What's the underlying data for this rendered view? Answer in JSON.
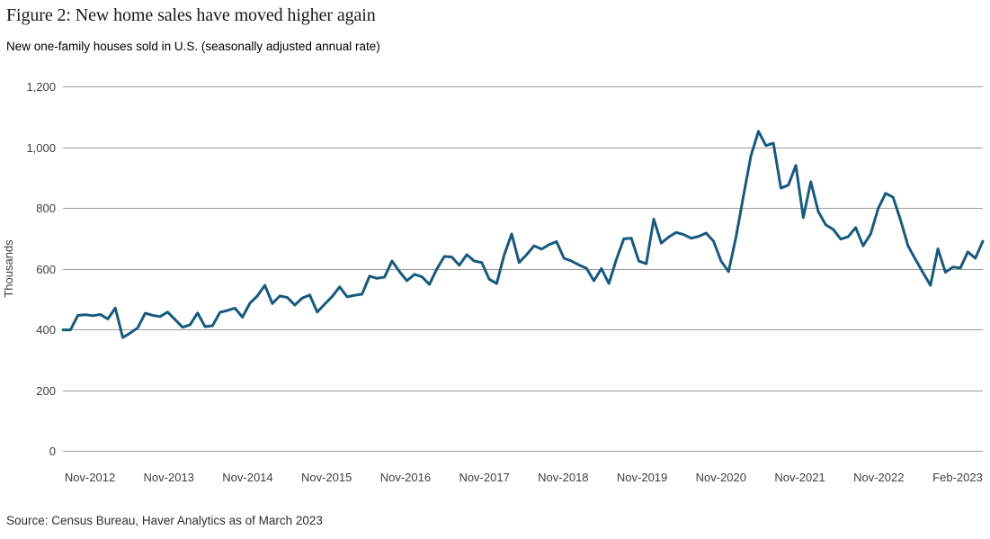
{
  "header": {
    "title": "Figure 2: New home sales have moved higher again",
    "subtitle": "New one-family houses sold in U.S. (seasonally adjusted annual rate)"
  },
  "footer": {
    "source": "Source: Census Bureau, Haver Analytics as of March 2023"
  },
  "chart_data": {
    "type": "line",
    "title": "Figure 2: New home sales have moved higher again",
    "subtitle": "New one-family houses sold in U.S. (seasonally adjusted annual rate)",
    "ylabel": "Thousands",
    "ylim": [
      0,
      1200
    ],
    "y_ticks": [
      0,
      200,
      400,
      600,
      800,
      1000,
      1200
    ],
    "x_tick_labels": [
      "Nov-2012",
      "Nov-2013",
      "Nov-2014",
      "Nov-2015",
      "Nov-2016",
      "Nov-2017",
      "Nov-2018",
      "Nov-2019",
      "Nov-2020",
      "Nov-2021",
      "Nov-2022",
      "Feb-2023"
    ],
    "grid": "horizontal",
    "legend": "none",
    "line_color": "#175A7E",
    "gridline_color": "#9B9B9B",
    "series": [
      {
        "name": "New one-family houses sold in U.S., seasonally adjusted annual rate (thousands)",
        "start": "Nov-2012",
        "frequency": "monthly",
        "values": [
          398,
          398,
          446,
          448,
          445,
          449,
          434,
          470,
          373,
          388,
          405,
          453,
          446,
          442,
          457,
          432,
          407,
          415,
          454,
          409,
          412,
          456,
          462,
          470,
          440,
          486,
          510,
          545,
          485,
          510,
          505,
          480,
          503,
          513,
          457,
          483,
          508,
          540,
          507,
          512,
          516,
          575,
          568,
          572,
          625,
          590,
          560,
          581,
          573,
          548,
          599,
          640,
          638,
          611,
          646,
          625,
          620,
          565,
          551,
          645,
          714,
          620,
          646,
          675,
          664,
          679,
          689,
          634,
          625,
          612,
          601,
          560,
          600,
          551,
          630,
          698,
          700,
          625,
          616,
          763,
          684,
          704,
          719,
          712,
          700,
          706,
          717,
          690,
          625,
          590,
          704,
          840,
          972,
          1052,
          1005,
          1013,
          865,
          875,
          940,
          768,
          886,
          788,
          744,
          729,
          697,
          705,
          735,
          675,
          714,
          797,
          848,
          835,
          760,
          675,
          630,
          587,
          545,
          665,
          588,
          605,
          602,
          655,
          634,
          690
        ]
      }
    ]
  }
}
